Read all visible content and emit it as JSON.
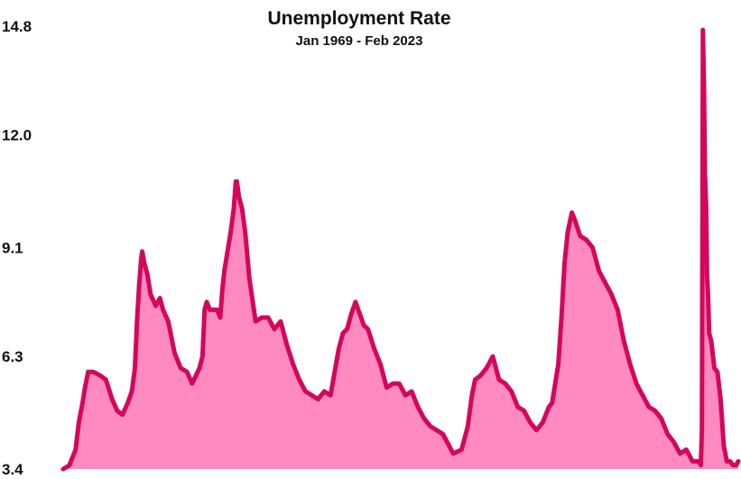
{
  "chart_data": {
    "type": "area",
    "title": "Unemployment Rate",
    "subtitle": "Jan 1969 - Feb 2023",
    "xlabel": "",
    "ylabel": "",
    "xlim": [
      "1969-01",
      "2023-02"
    ],
    "ylim": [
      3.4,
      14.8
    ],
    "y_ticks": [
      "14.8",
      "12.0",
      "9.1",
      "6.3",
      "3.4"
    ],
    "grid": false,
    "legend": "none",
    "colors": {
      "line": "#d4075a",
      "fill": "#ff8ac0"
    },
    "series": [
      {
        "x": [
          "1969-01",
          "1969-07",
          "1970-01",
          "1970-04",
          "1970-07",
          "1970-10",
          "1971-01",
          "1971-06",
          "1972-01",
          "1972-06",
          "1972-12",
          "1973-05",
          "1973-10",
          "1974-03",
          "1974-07",
          "1974-10",
          "1974-12",
          "1975-02",
          "1975-04",
          "1975-05",
          "1975-07",
          "1975-10",
          "1976-01",
          "1976-06",
          "1976-10",
          "1977-01",
          "1977-06",
          "1977-12",
          "1978-06",
          "1978-12",
          "1979-05",
          "1979-12",
          "1980-03",
          "1980-05",
          "1980-07",
          "1980-10",
          "1981-01",
          "1981-05",
          "1981-08",
          "1981-10",
          "1981-12",
          "1982-03",
          "1982-06",
          "1982-09",
          "1982-11",
          "1982-12",
          "1983-02",
          "1983-05",
          "1983-08",
          "1983-12",
          "1984-06",
          "1984-12",
          "1985-06",
          "1985-12",
          "1986-06",
          "1986-12",
          "1987-06",
          "1987-12",
          "1988-06",
          "1988-12",
          "1989-06",
          "1989-12",
          "1990-06",
          "1990-10",
          "1991-02",
          "1991-06",
          "1991-10",
          "1992-02",
          "1992-06",
          "1992-10",
          "1993-02",
          "1993-06",
          "1993-12",
          "1994-06",
          "1994-12",
          "1995-06",
          "1995-12",
          "1996-06",
          "1996-12",
          "1997-06",
          "1997-12",
          "1998-06",
          "1998-12",
          "1999-06",
          "1999-12",
          "2000-04",
          "2000-12",
          "2001-06",
          "2001-10",
          "2002-01",
          "2002-06",
          "2002-12",
          "2003-06",
          "2003-12",
          "2004-06",
          "2004-12",
          "2005-06",
          "2005-12",
          "2006-06",
          "2006-12",
          "2007-06",
          "2007-12",
          "2008-03",
          "2008-06",
          "2008-09",
          "2008-12",
          "2009-03",
          "2009-06",
          "2009-10",
          "2010-01",
          "2010-06",
          "2010-12",
          "2011-06",
          "2011-12",
          "2012-06",
          "2012-12",
          "2013-06",
          "2013-12",
          "2014-06",
          "2014-12",
          "2015-06",
          "2015-12",
          "2016-06",
          "2016-12",
          "2017-06",
          "2017-12",
          "2018-06",
          "2018-12",
          "2019-06",
          "2019-12",
          "2020-02",
          "2020-03",
          "2020-04",
          "2020-05",
          "2020-06",
          "2020-07",
          "2020-08",
          "2020-09",
          "2020-10",
          "2020-12",
          "2021-03",
          "2021-06",
          "2021-09",
          "2021-12",
          "2022-03",
          "2022-06",
          "2022-09",
          "2022-12",
          "2023-02"
        ],
        "values": [
          3.4,
          3.5,
          3.9,
          4.6,
          5.0,
          5.5,
          5.9,
          5.9,
          5.8,
          5.7,
          5.2,
          4.9,
          4.8,
          5.1,
          5.4,
          6.0,
          7.2,
          8.1,
          8.8,
          9.0,
          8.7,
          8.4,
          7.9,
          7.6,
          7.8,
          7.5,
          7.2,
          6.4,
          6.0,
          5.9,
          5.6,
          6.0,
          6.3,
          7.5,
          7.7,
          7.5,
          7.5,
          7.5,
          7.3,
          8.0,
          8.5,
          9.0,
          9.5,
          10.1,
          10.8,
          10.8,
          10.4,
          10.1,
          9.5,
          8.3,
          7.2,
          7.3,
          7.3,
          7.0,
          7.2,
          6.6,
          6.1,
          5.7,
          5.4,
          5.3,
          5.2,
          5.4,
          5.3,
          5.9,
          6.5,
          6.9,
          7.0,
          7.4,
          7.7,
          7.4,
          7.1,
          7.0,
          6.5,
          6.1,
          5.5,
          5.6,
          5.6,
          5.3,
          5.4,
          5.0,
          4.7,
          4.5,
          4.4,
          4.3,
          4.0,
          3.8,
          3.9,
          4.5,
          5.3,
          5.7,
          5.8,
          6.0,
          6.3,
          5.7,
          5.6,
          5.4,
          5.0,
          4.9,
          4.6,
          4.4,
          4.6,
          5.0,
          5.1,
          5.6,
          6.1,
          7.3,
          8.7,
          9.5,
          10.0,
          9.8,
          9.4,
          9.3,
          9.1,
          8.5,
          8.2,
          7.9,
          7.5,
          6.7,
          6.1,
          5.6,
          5.3,
          5.0,
          4.9,
          4.7,
          4.3,
          4.1,
          3.8,
          3.9,
          3.6,
          3.6,
          3.5,
          4.4,
          14.7,
          13.2,
          11.0,
          10.2,
          8.4,
          7.8,
          6.9,
          6.7,
          6.0,
          5.9,
          5.2,
          4.0,
          3.6,
          3.6,
          3.5,
          3.5,
          3.6
        ]
      }
    ]
  }
}
